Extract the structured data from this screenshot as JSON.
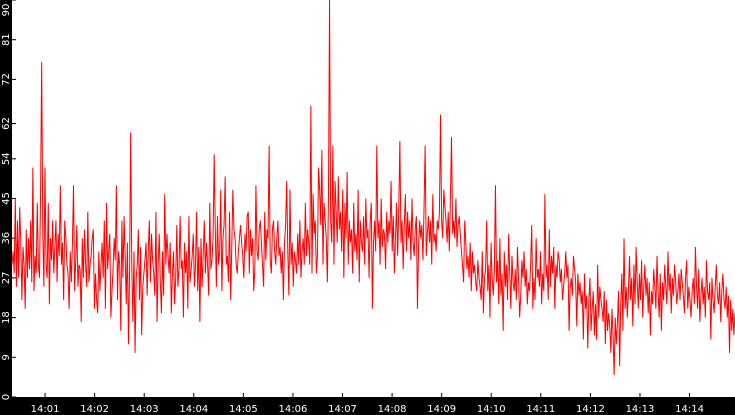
{
  "chart_data": {
    "type": "line",
    "title": "",
    "xlabel": "",
    "ylabel": "",
    "ylim": [
      0,
      90
    ],
    "y_ticks": [
      0,
      9,
      18,
      27,
      36,
      45,
      54,
      62,
      72,
      81,
      90
    ],
    "x_ticks": [
      "14:01",
      "14:02",
      "14:03",
      "14:04",
      "14:05",
      "14:06",
      "14:07",
      "14:08",
      "14:09",
      "14:10",
      "14:11",
      "14:12",
      "14:13",
      "14:14"
    ],
    "x_range": [
      "14:00:20",
      "14:14:55"
    ],
    "grid": false,
    "legend": "none",
    "background_color": "#000000",
    "plot_background_color": "#ffffff",
    "series": [
      {
        "color": "#ff0000",
        "values": [
          30,
          33,
          28,
          45,
          25,
          40,
          27,
          43,
          35,
          22,
          34,
          30,
          20,
          38,
          27,
          36,
          29,
          40,
          26,
          52,
          24,
          32,
          28,
          44,
          30,
          27,
          46,
          76,
          38,
          25,
          52,
          30,
          27,
          44,
          21,
          36,
          31,
          40,
          28,
          34,
          40,
          26,
          37,
          32,
          48,
          30,
          35,
          22,
          40,
          36,
          30,
          28,
          20,
          33,
          26,
          35,
          48,
          24,
          31,
          39,
          25,
          30,
          29,
          17,
          36,
          27,
          38,
          30,
          25,
          42,
          26,
          30,
          32,
          36,
          38,
          20,
          28,
          22,
          19,
          33,
          24,
          30,
          35,
          27,
          40,
          20,
          44,
          29,
          33,
          37,
          18,
          24,
          29,
          36,
          31,
          48,
          22,
          33,
          30,
          15,
          40,
          27,
          41,
          32,
          21,
          35,
          12,
          28,
          60,
          30,
          17,
          33,
          10,
          27,
          30,
          38,
          22,
          34,
          14,
          25,
          28,
          31,
          35,
          23,
          33,
          40,
          26,
          37,
          31,
          28,
          23,
          42,
          17,
          30,
          37,
          26,
          19,
          33,
          23,
          46,
          30,
          37,
          32,
          28,
          35,
          19,
          28,
          33,
          21,
          27,
          39,
          25,
          29,
          41,
          29,
          31,
          18,
          35,
          28,
          33,
          20,
          41,
          26,
          29,
          32,
          37,
          25,
          30,
          42,
          24,
          34,
          17,
          36,
          25,
          32,
          40,
          28,
          35,
          30,
          23,
          44,
          29,
          31,
          36,
          55,
          38,
          25,
          41,
          30,
          33,
          47,
          24,
          36,
          39,
          50,
          30,
          32,
          26,
          42,
          22,
          34,
          47,
          38,
          36,
          30,
          28,
          33,
          36,
          39,
          35,
          32,
          27,
          37,
          33,
          41,
          42,
          28,
          38,
          32,
          36,
          24,
          29,
          48,
          33,
          31,
          38,
          40,
          35,
          30,
          25,
          42,
          31,
          38,
          36,
          57,
          31,
          28,
          38,
          40,
          33,
          30,
          36,
          40,
          32,
          34,
          28,
          33,
          22,
          35,
          39,
          49,
          33,
          23,
          47,
          30,
          35,
          25,
          33,
          31,
          28,
          37,
          30,
          40,
          27,
          33,
          36,
          30,
          44,
          32,
          38,
          35,
          30,
          66,
          28,
          46,
          37,
          40,
          28,
          32,
          52,
          47,
          39,
          56,
          30,
          44,
          40,
          36,
          26,
          45,
          90,
          40,
          35,
          57,
          30,
          49,
          42,
          35,
          50,
          38,
          42,
          33,
          47,
          27,
          44,
          36,
          51,
          30,
          40,
          35,
          38,
          28,
          44,
          33,
          37,
          31,
          47,
          26,
          40,
          35,
          33,
          41,
          30,
          45,
          36,
          38,
          27,
          40,
          44,
          20,
          35,
          40,
          33,
          57,
          36,
          40,
          30,
          45,
          34,
          38,
          37,
          29,
          42,
          35,
          40,
          37,
          49,
          33,
          41,
          28,
          36,
          44,
          32,
          43,
          58,
          35,
          40,
          29,
          39,
          46,
          33,
          42,
          36,
          40,
          31,
          45,
          35,
          32,
          38,
          41,
          20,
          34,
          40,
          36,
          39,
          31,
          43,
          57,
          32,
          37,
          41,
          35,
          40,
          30,
          46,
          35,
          37,
          33,
          40,
          38,
          42,
          64,
          40,
          36,
          47,
          43,
          40,
          35,
          42,
          33,
          45,
          59,
          37,
          40,
          36,
          45,
          34,
          39,
          41,
          37,
          33,
          30,
          26,
          40,
          35,
          29,
          32,
          27,
          35,
          24,
          33,
          28,
          30,
          26,
          24,
          31,
          27,
          25,
          22,
          33,
          19,
          27,
          29,
          40,
          24,
          30,
          18,
          35,
          27,
          23,
          29,
          48,
          26,
          31,
          21,
          36,
          23,
          28,
          15,
          33,
          25,
          30,
          22,
          37,
          28,
          20,
          32,
          26,
          24,
          29,
          22,
          34,
          27,
          18,
          23,
          31,
          27,
          33,
          25,
          29,
          21,
          26,
          24,
          30,
          39,
          20,
          27,
          22,
          36,
          27,
          29,
          25,
          33,
          21,
          28,
          24,
          46,
          27,
          30,
          22,
          38,
          25,
          32,
          28,
          34,
          20,
          30,
          27,
          33,
          31,
          26,
          29,
          22,
          25,
          28,
          33,
          27,
          30,
          15,
          25,
          27,
          23,
          32,
          29,
          26,
          16,
          28,
          23,
          26,
          21,
          24,
          13,
          28,
          20,
          23,
          11,
          22,
          27,
          15,
          20,
          24,
          14,
          21,
          13,
          30,
          18,
          25,
          22,
          20,
          17,
          24,
          12,
          22,
          15,
          19,
          16,
          10,
          20,
          14,
          5,
          18,
          12,
          17,
          24,
          7,
          21,
          28,
          15,
          36,
          20,
          25,
          18,
          24,
          32,
          22,
          27,
          16,
          30,
          21,
          34,
          26,
          20,
          28,
          22,
          31,
          18,
          25,
          30,
          23,
          27,
          19,
          26,
          14,
          24,
          21,
          29,
          25,
          20,
          32,
          24,
          18,
          28,
          15,
          26,
          22,
          30,
          25,
          21,
          33,
          24,
          28,
          19,
          27,
          23,
          30,
          26,
          21,
          24,
          28,
          22,
          29,
          26,
          23,
          19,
          27,
          31,
          20,
          25,
          22,
          18,
          24,
          27,
          21,
          34,
          25,
          20,
          29,
          17,
          23,
          27,
          21,
          25,
          18,
          31,
          24,
          22,
          26,
          13,
          27,
          22,
          19,
          25,
          30,
          23,
          21,
          26,
          17,
          24,
          28,
          22,
          20,
          25,
          18,
          23,
          10,
          22,
          15,
          20,
          14,
          19
        ]
      }
    ]
  }
}
